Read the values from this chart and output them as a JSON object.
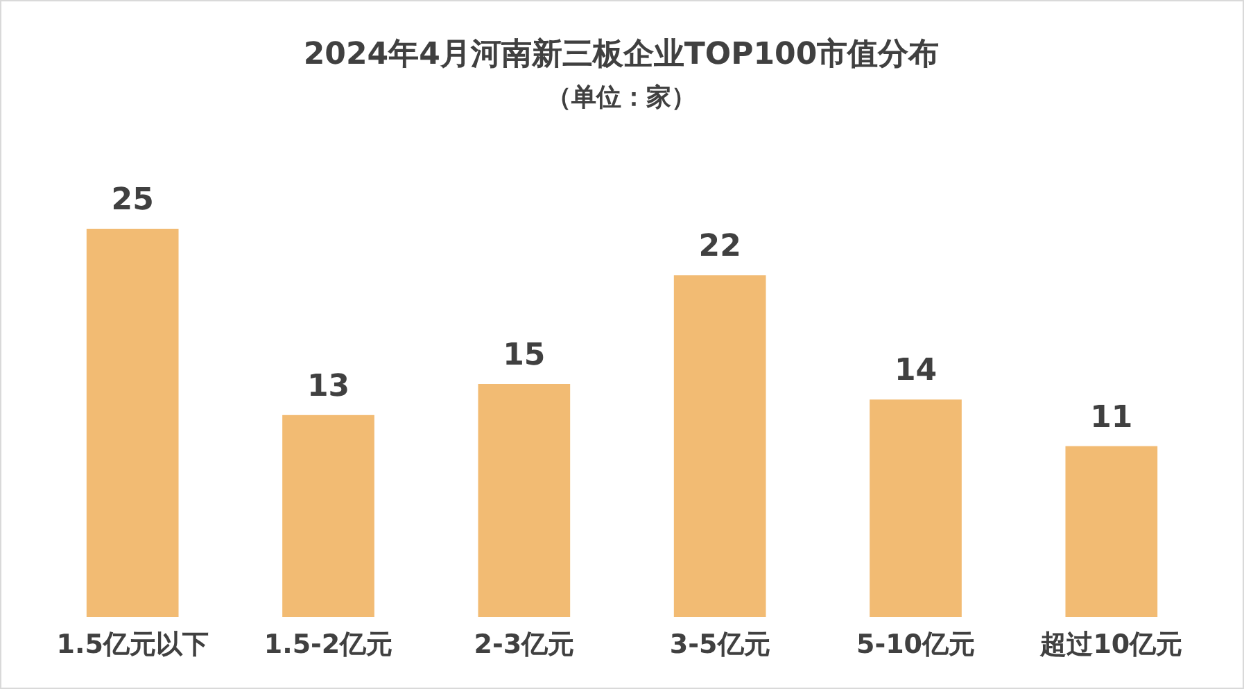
{
  "chart_data": {
    "type": "bar",
    "title": "2024年4月河南新三板企业TOP100市值分布",
    "subtitle": "（单位：家）",
    "categories": [
      "1.5亿元以下",
      "1.5-2亿元",
      "2-3亿元",
      "3-5亿元",
      "5-10亿元",
      "超过10亿元"
    ],
    "values": [
      25,
      13,
      15,
      22,
      14,
      11
    ],
    "color": "#f2bb73",
    "data_labels": true,
    "grid": false
  }
}
